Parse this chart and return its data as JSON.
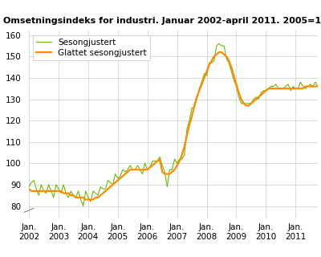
{
  "title": "Omsetningsindeks for industri. Januar 2002-april 2011. 2005=100",
  "color_smooth": "#FF8C00",
  "color_seasonal": "#66BB00",
  "legend_smooth": "Glattet sesongjustert",
  "legend_seasonal": "Sesongjustert",
  "ylim_main": [
    78,
    162
  ],
  "ylim_break": [
    0,
    5
  ],
  "yticks": [
    80,
    90,
    100,
    110,
    120,
    130,
    140,
    150,
    160
  ],
  "xtick_labels": [
    "Jan.\n2002",
    "Jan.\n2003",
    "Jan.\n2004",
    "Jan.\n2005",
    "Jan.\n2006",
    "Jan.\n2007",
    "Jan.\n2008",
    "Jan.\n2009",
    "Jan.\n2010",
    "Jan.\n2011"
  ],
  "smoothed": [
    88,
    87,
    87,
    87,
    87,
    87,
    87,
    87,
    87,
    87,
    87,
    87,
    87,
    87,
    86,
    86,
    86,
    85,
    85,
    84,
    84,
    84,
    84,
    83,
    83,
    83,
    83,
    84,
    84,
    85,
    86,
    87,
    88,
    89,
    90,
    91,
    92,
    93,
    94,
    95,
    96,
    97,
    97,
    97,
    97,
    97,
    97,
    97,
    97,
    98,
    99,
    100,
    101,
    102,
    96,
    95,
    95,
    95,
    96,
    97,
    99,
    101,
    104,
    108,
    113,
    118,
    122,
    127,
    131,
    134,
    137,
    140,
    143,
    146,
    148,
    150,
    151,
    152,
    152,
    151,
    150,
    148,
    145,
    141,
    137,
    133,
    130,
    128,
    127,
    127,
    128,
    129,
    130,
    131,
    132,
    133,
    134,
    135,
    135,
    135,
    135,
    135,
    135,
    135,
    135,
    135,
    135,
    135,
    135,
    135,
    135,
    135,
    136,
    136,
    136,
    136,
    136,
    136
  ],
  "seasonal": [
    89,
    91,
    92,
    88,
    85,
    90,
    87,
    86,
    90,
    87,
    84,
    90,
    88,
    86,
    90,
    86,
    84,
    87,
    85,
    84,
    87,
    83,
    80,
    87,
    84,
    82,
    87,
    86,
    85,
    89,
    88,
    88,
    92,
    91,
    90,
    95,
    93,
    94,
    97,
    96,
    97,
    99,
    97,
    97,
    99,
    97,
    95,
    100,
    97,
    98,
    101,
    101,
    101,
    103,
    99,
    96,
    89,
    97,
    97,
    102,
    100,
    102,
    102,
    104,
    116,
    120,
    126,
    126,
    130,
    135,
    138,
    142,
    141,
    147,
    147,
    148,
    155,
    156,
    155,
    155,
    149,
    147,
    143,
    139,
    136,
    131,
    128,
    128,
    128,
    128,
    128,
    130,
    131,
    130,
    133,
    134,
    134,
    135,
    136,
    136,
    137,
    135,
    135,
    135,
    136,
    137,
    134,
    136,
    135,
    135,
    138,
    136,
    135,
    136,
    137,
    136,
    138,
    136
  ]
}
